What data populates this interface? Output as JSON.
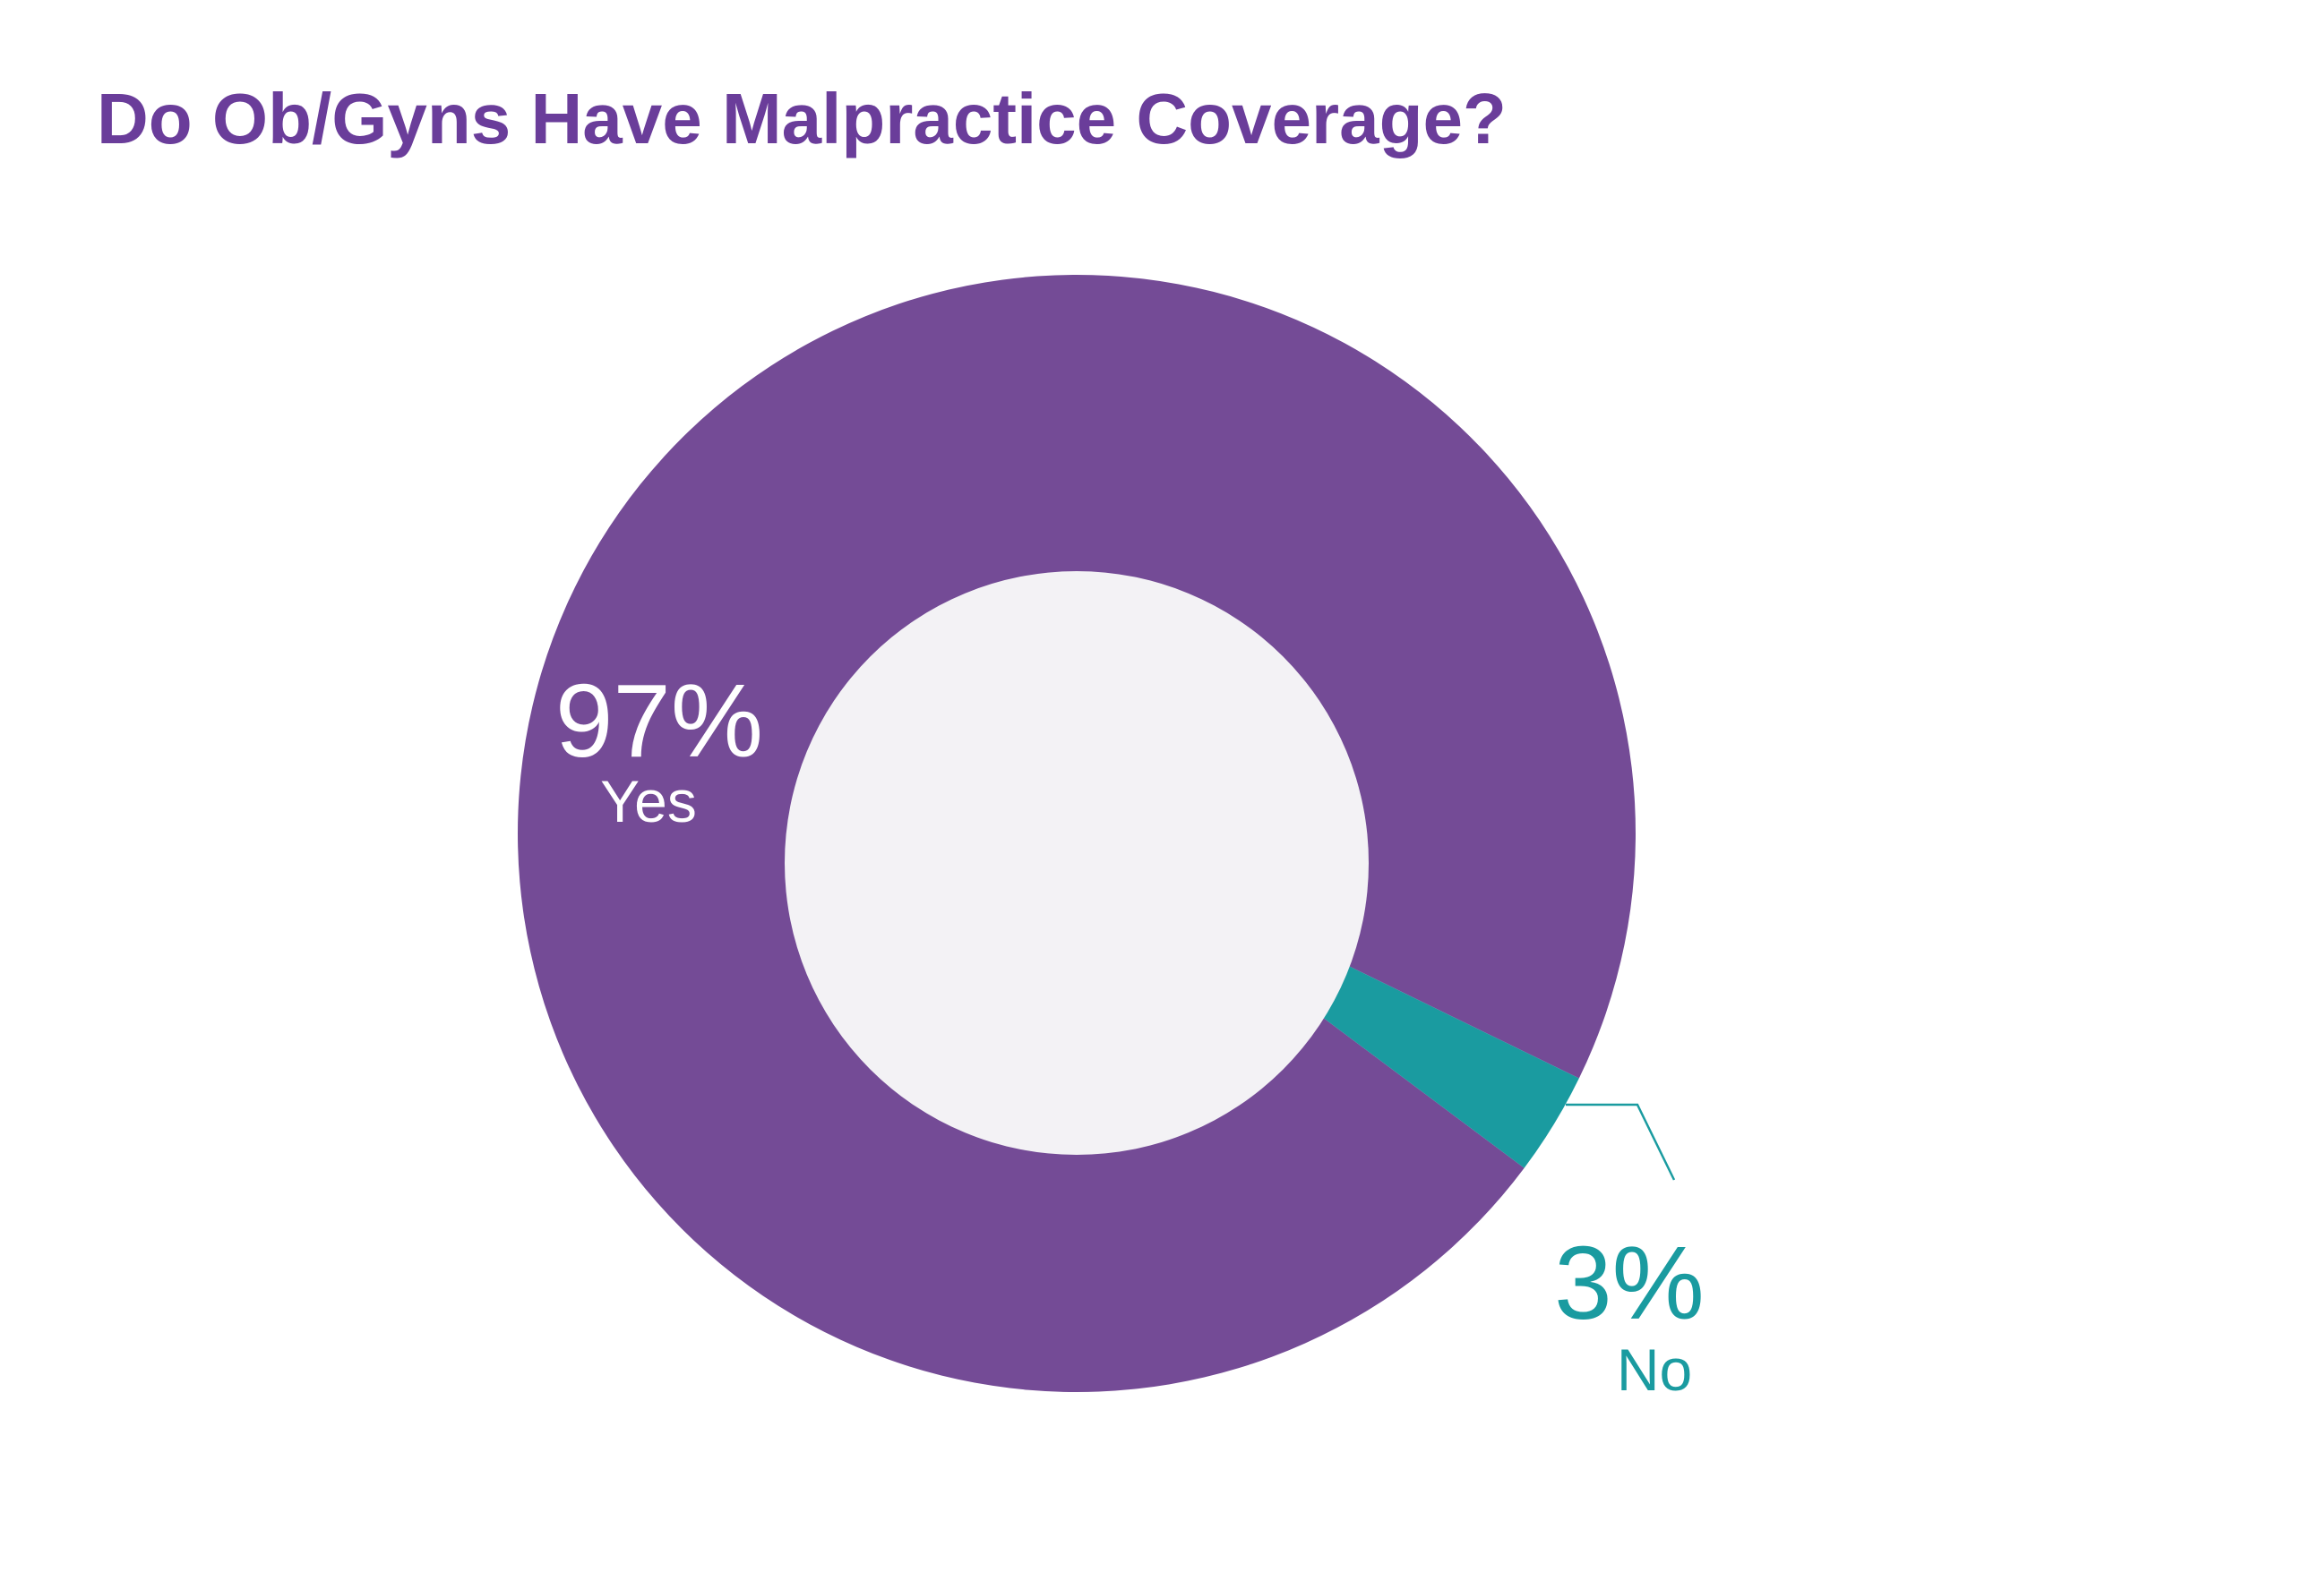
{
  "chart_data": {
    "type": "pie",
    "title": "Do Ob/Gyns Have Malpractice Coverage?",
    "categories": [
      "Yes",
      "No"
    ],
    "values": [
      97,
      3
    ],
    "value_labels": [
      "97%",
      "3%"
    ],
    "colors": [
      "#744b96",
      "#1a9ba0"
    ]
  }
}
